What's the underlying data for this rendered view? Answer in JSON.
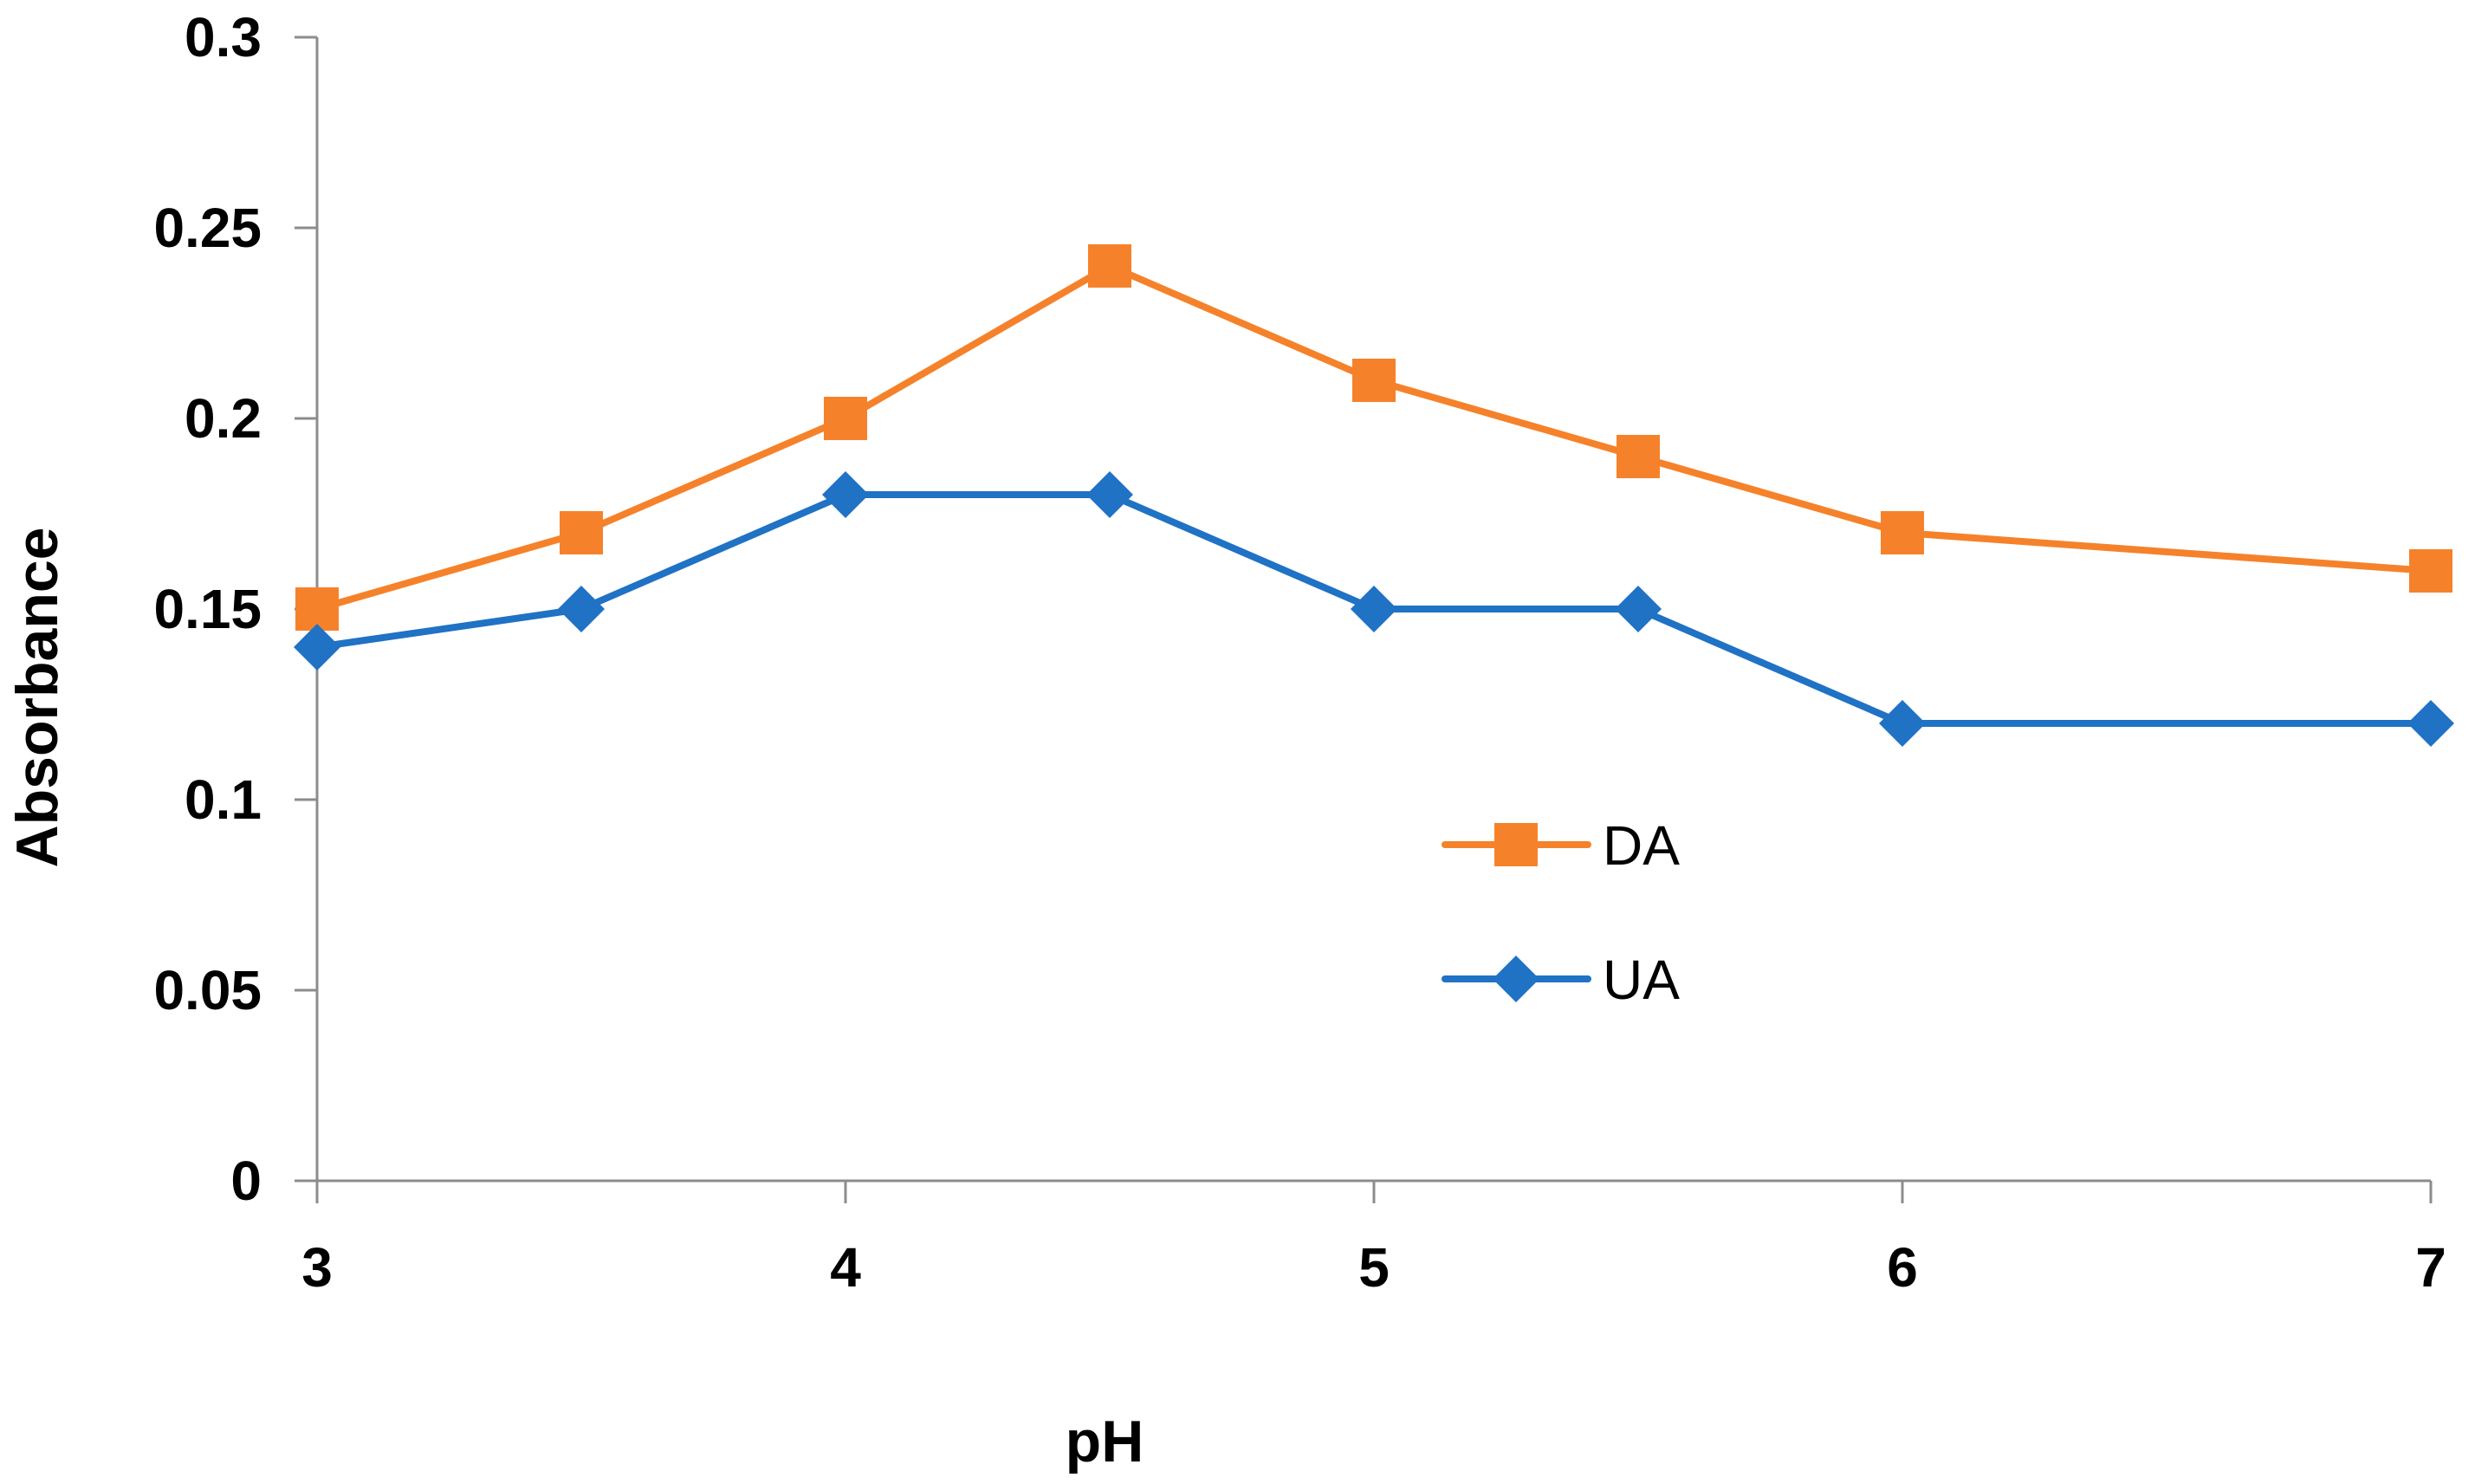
{
  "chart_data": {
    "type": "line",
    "title": "",
    "xlabel": "pH",
    "ylabel": "Absorbance",
    "xlim": [
      3,
      7
    ],
    "ylim": [
      0,
      0.3
    ],
    "x_ticks": [
      "3",
      "4",
      "5",
      "6",
      "7"
    ],
    "y_ticks": [
      "0",
      "0.05",
      "0.1",
      "0.15",
      "0.2",
      "0.25",
      "0.3"
    ],
    "x_tick_values": [
      3,
      4,
      5,
      6,
      7
    ],
    "y_tick_values": [
      0,
      0.05,
      0.1,
      0.15,
      0.2,
      0.25,
      0.3
    ],
    "x": [
      3,
      3.5,
      4,
      4.5,
      5,
      5.5,
      6,
      7
    ],
    "grid": false,
    "legend_position": "center-right",
    "series": [
      {
        "name": "DA",
        "marker": "square",
        "color": "#F5822B",
        "values": [
          0.15,
          0.17,
          0.2,
          0.24,
          0.21,
          0.19,
          0.17,
          0.16
        ]
      },
      {
        "name": "UA",
        "marker": "diamond",
        "color": "#1F72C4",
        "values": [
          0.14,
          0.15,
          0.18,
          0.18,
          0.15,
          0.15,
          0.12,
          0.12
        ]
      }
    ],
    "axis_color": "#8C8C8C"
  }
}
